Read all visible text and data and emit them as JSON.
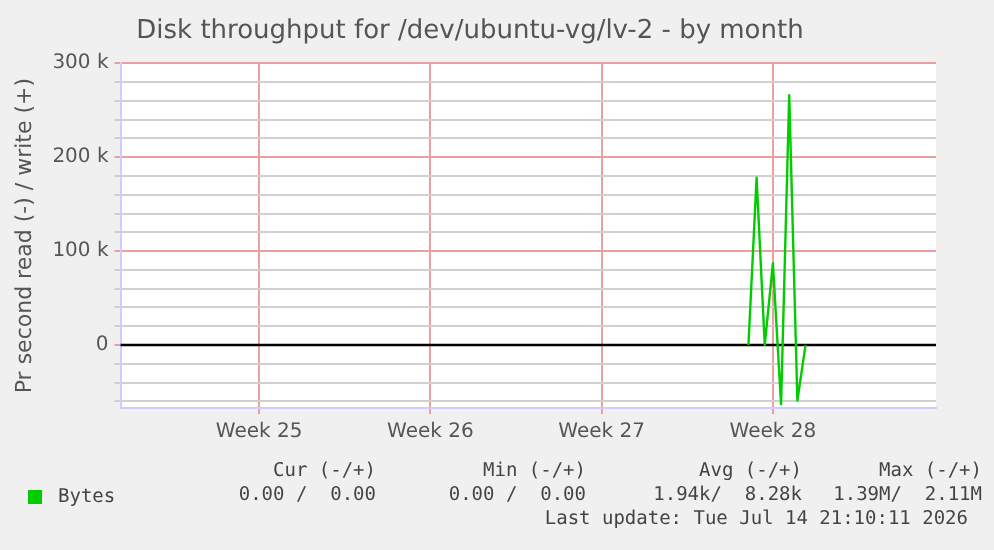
{
  "chart_data": {
    "type": "line",
    "title": "Disk throughput for /dev/ubuntu-vg/lv-2 - by month",
    "ylabel": "Pr second read (-) / write (+)",
    "categories": [
      null,
      null,
      null,
      null,
      null,
      null,
      null,
      null,
      null,
      null,
      null,
      null,
      null,
      null,
      null,
      null,
      null,
      "Week 25",
      null,
      null,
      null,
      null,
      null,
      null,
      null,
      null,
      null,
      null,
      null,
      null,
      null,
      null,
      null,
      null,
      null,
      null,
      null,
      null,
      "Week 26",
      null,
      null,
      null,
      null,
      null,
      null,
      null,
      null,
      null,
      null,
      null,
      null,
      null,
      null,
      null,
      null,
      null,
      null,
      null,
      null,
      "Week 27",
      null,
      null,
      null,
      null,
      null,
      null,
      null,
      null,
      null,
      null,
      null,
      null,
      null,
      null,
      null,
      null,
      null,
      null,
      null,
      null,
      "Week 28",
      null,
      null,
      null,
      null,
      null,
      null,
      null,
      null,
      null,
      null,
      null,
      null,
      null,
      null,
      null,
      null,
      null,
      null,
      null,
      null
    ],
    "series": [
      {
        "name": "Bytes",
        "color": "#00cc00",
        "values": [
          null,
          null,
          null,
          null,
          null,
          null,
          null,
          null,
          null,
          null,
          null,
          null,
          null,
          null,
          null,
          null,
          null,
          null,
          null,
          null,
          null,
          null,
          null,
          null,
          null,
          null,
          null,
          null,
          null,
          null,
          null,
          null,
          null,
          null,
          null,
          null,
          null,
          null,
          null,
          null,
          null,
          null,
          null,
          null,
          null,
          null,
          null,
          null,
          null,
          null,
          null,
          null,
          null,
          null,
          null,
          null,
          null,
          null,
          null,
          null,
          null,
          null,
          null,
          null,
          null,
          null,
          null,
          null,
          null,
          null,
          null,
          null,
          null,
          null,
          null,
          null,
          null,
          0,
          178000,
          0,
          87000,
          -63000,
          266000,
          -59000,
          0,
          null,
          null,
          null,
          null,
          null,
          null,
          null,
          null,
          null,
          null,
          null,
          null,
          null,
          null,
          null,
          null
        ]
      }
    ],
    "ylim": [
      -67000,
      300000
    ],
    "yticks": [
      {
        "value": -60000,
        "label": null
      },
      {
        "value": -40000,
        "label": null
      },
      {
        "value": -20000,
        "label": null
      },
      {
        "value": 0,
        "label": "0"
      },
      {
        "value": 20000,
        "label": null
      },
      {
        "value": 40000,
        "label": null
      },
      {
        "value": 60000,
        "label": null
      },
      {
        "value": 80000,
        "label": null
      },
      {
        "value": 100000,
        "label": "100 k"
      },
      {
        "value": 120000,
        "label": null
      },
      {
        "value": 140000,
        "label": null
      },
      {
        "value": 160000,
        "label": null
      },
      {
        "value": 180000,
        "label": null
      },
      {
        "value": 200000,
        "label": "200 k"
      },
      {
        "value": 220000,
        "label": null
      },
      {
        "value": 240000,
        "label": null
      },
      {
        "value": 260000,
        "label": null
      },
      {
        "value": 280000,
        "label": null
      },
      {
        "value": 300000,
        "label": "300 k"
      }
    ],
    "ref_lines": [
      {
        "axis": "y",
        "value": 0,
        "color": "#000000"
      }
    ],
    "grid": true,
    "legend": "bottom",
    "marker": "none",
    "line_style": "solid",
    "annotations": [
      "Cur (-/+)",
      "Min (-/+)",
      "Avg (-/+)",
      "Max (-/+)",
      "0.00 /  0.00",
      "0.00 /  0.00",
      "1.94k/  8.28k",
      "1.39M/  2.11M",
      "Last update: Tue Jul 14 21:10:11 2026"
    ]
  }
}
